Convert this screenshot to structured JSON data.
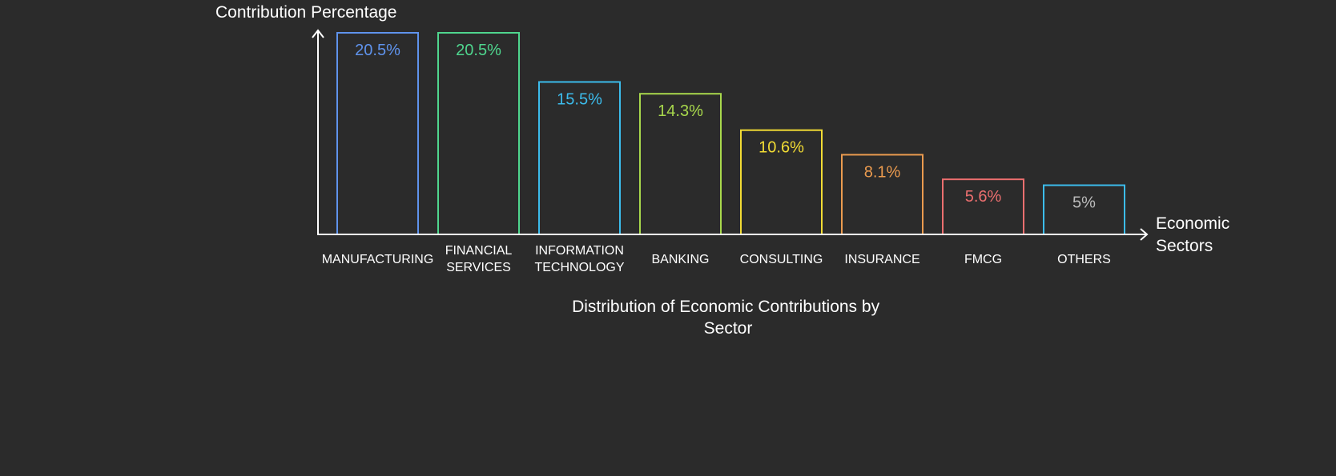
{
  "chart_data": {
    "type": "bar",
    "title": "Distribution of Economic Contributions by Sector",
    "title_lines": [
      "Distribution of Economic Contributions by",
      "Sector"
    ],
    "ylabel": "Contribution Percentage",
    "xlabel": "Economic Sectors",
    "xlabel_lines": [
      "Economic",
      "Sectors"
    ],
    "ylim": [
      0,
      20.5
    ],
    "grid": false,
    "categories": [
      "MANUFACTURING",
      "FINANCIAL SERVICES",
      "INFORMATION TECHNOLOGY",
      "BANKING",
      "CONSULTING",
      "INSURANCE",
      "FMCG",
      "OTHERS"
    ],
    "category_lines": [
      [
        "MANUFACTURING"
      ],
      [
        "FINANCIAL",
        "SERVICES"
      ],
      [
        "INFORMATION",
        "TECHNOLOGY"
      ],
      [
        "BANKING"
      ],
      [
        "CONSULTING"
      ],
      [
        "INSURANCE"
      ],
      [
        "FMCG"
      ],
      [
        "OTHERS"
      ]
    ],
    "values": [
      20.5,
      20.5,
      15.5,
      14.3,
      10.6,
      8.1,
      5.6,
      5
    ],
    "data_labels": [
      "20.5%",
      "20.5%",
      "15.5%",
      "14.3%",
      "10.6%",
      "8.1%",
      "5.6%",
      "5%"
    ],
    "colors": [
      "#5f93ec",
      "#4fd68e",
      "#3cbcec",
      "#a8d84c",
      "#f2dc34",
      "#eb9b4f",
      "#ec6f6f",
      "#3cbcec"
    ],
    "label_colors": [
      "#5f93ec",
      "#4fd68e",
      "#3cbcec",
      "#a8d84c",
      "#f2dc34",
      "#eb9b4f",
      "#ec6f6f",
      "#bbbbbb"
    ]
  }
}
